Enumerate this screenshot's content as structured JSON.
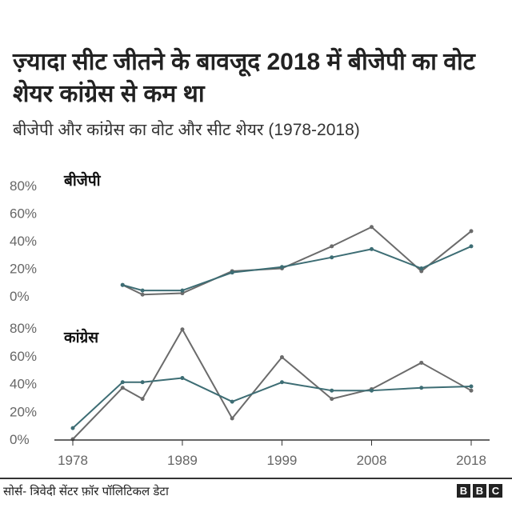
{
  "title": "ज़्यादा सीट जीतने के बावजूद 2018 में बीजेपी का वोट शेयर कांग्रेस से कम था",
  "subtitle": "बीजेपी और कांग्रेस का वोट और सीट शेयर (1978-2018)",
  "source": "सोर्स- त्रिवेदी सेंटर फ़ॉर पॉलिटिकल डेटा",
  "logo": [
    "B",
    "B",
    "C"
  ],
  "colors": {
    "seat_share": "#6b6b6b",
    "vote_share": "#3d6d74"
  },
  "chart_data": [
    {
      "type": "line",
      "title": "बीजेपी",
      "x": [
        1983,
        1985,
        1989,
        1994,
        1999,
        2004,
        2008,
        2013,
        2018
      ],
      "ylim": [
        0,
        80
      ],
      "yticks": [
        "0%",
        "20%",
        "40%",
        "60%",
        "80%"
      ],
      "series": [
        {
          "name": "seat share",
          "color": "#6b6b6b",
          "values": [
            8,
            1,
            2,
            18,
            20,
            36,
            50,
            18,
            47
          ]
        },
        {
          "name": "vote share",
          "color": "#3d6d74",
          "values": [
            8,
            4,
            4,
            17,
            21,
            28,
            34,
            20,
            36
          ]
        }
      ]
    },
    {
      "type": "line",
      "title": "कांग्रेस",
      "x": [
        1978,
        1983,
        1985,
        1989,
        1994,
        1999,
        2004,
        2008,
        2013,
        2018
      ],
      "ylim": [
        0,
        80
      ],
      "yticks": [
        "0%",
        "20%",
        "40%",
        "60%",
        "80%"
      ],
      "xticks": [
        "1978",
        "1989",
        "1999",
        "2008",
        "2018"
      ],
      "series": [
        {
          "name": "seat share",
          "color": "#6b6b6b",
          "values": [
            0,
            37,
            29,
            79,
            15,
            59,
            29,
            36,
            55,
            35
          ]
        },
        {
          "name": "vote share",
          "color": "#3d6d74",
          "values": [
            8,
            41,
            41,
            44,
            27,
            41,
            35,
            35,
            37,
            38
          ]
        }
      ]
    }
  ]
}
